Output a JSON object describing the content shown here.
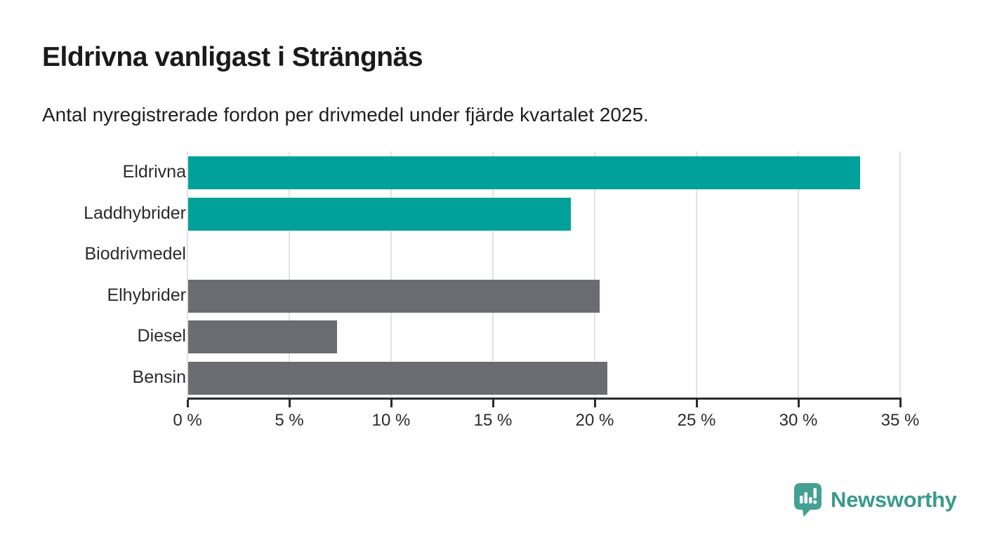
{
  "chart": {
    "title": "Eldrivna vanligast i Strängnäs",
    "subtitle": "Antal nyregistrerade fordon per drivmedel under fjärde kvartalet 2025."
  },
  "chart_data": {
    "type": "bar",
    "orientation": "horizontal",
    "title": "Eldrivna vanligast i Strängnäs",
    "subtitle": "Antal nyregistrerade fordon per drivmedel under fjärde kvartalet 2025.",
    "categories": [
      "Eldrivna",
      "Laddhybrider",
      "Biodrivmedel",
      "Elhybrider",
      "Diesel",
      "Bensin"
    ],
    "values": [
      33.0,
      18.8,
      0.0,
      20.2,
      7.3,
      20.6
    ],
    "unit": "%",
    "xlim": [
      0,
      35
    ],
    "xticks": [
      0,
      5,
      10,
      15,
      20,
      25,
      30,
      35
    ],
    "xtick_suffix": " %",
    "bar_colors": [
      "#00a19a",
      "#00a19a",
      "#6b6b72",
      "#6b6b72",
      "#6b6b72",
      "#6b6b72"
    ],
    "grid": true,
    "legend": false
  },
  "branding": {
    "logo_text": "Newsworthy",
    "logo_color": "#3b9a8e",
    "icon_color": "#44a092"
  },
  "colors": {
    "teal": "#00a19a",
    "gray": "#6b6b72",
    "gridline": "#e2e2e2",
    "axis": "#2b2b2b"
  }
}
